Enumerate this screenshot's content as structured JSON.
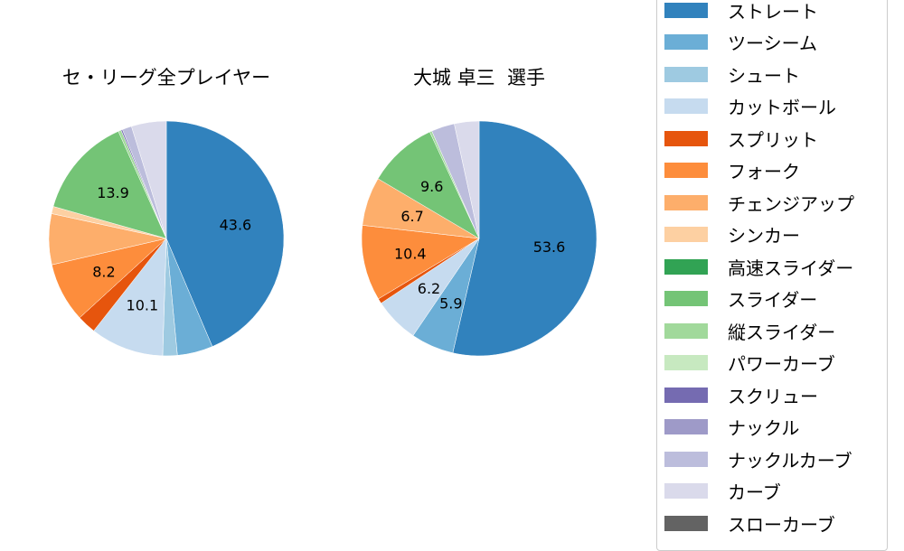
{
  "chart_data": [
    {
      "type": "pie",
      "title": "セ・リーグ全プレイヤー",
      "start_angle": 90,
      "direction": "clockwise",
      "categories": [
        "ストレート",
        "ツーシーム",
        "シュート",
        "カットボール",
        "スプリット",
        "フォーク",
        "チェンジアップ",
        "シンカー",
        "高速スライダー",
        "スライダー",
        "縦スライダー",
        "パワーカーブ",
        "スクリュー",
        "ナックル",
        "ナックルカーブ",
        "カーブ",
        "スローカーブ"
      ],
      "values": [
        43.6,
        4.9,
        2.0,
        10.1,
        2.6,
        8.2,
        7.0,
        1.0,
        0.0,
        13.9,
        0.4,
        0.0,
        0.2,
        0.0,
        1.3,
        4.8,
        0.0
      ],
      "data_labels": {
        "ストレート": "43.6",
        "カットボール": "10.1",
        "フォーク": "8.2",
        "スライダー": "13.9"
      }
    },
    {
      "type": "pie",
      "title": "大城 卓三  選手",
      "start_angle": 90,
      "direction": "clockwise",
      "categories": [
        "ストレート",
        "ツーシーム",
        "シュート",
        "カットボール",
        "スプリット",
        "フォーク",
        "チェンジアップ",
        "シンカー",
        "高速スライダー",
        "スライダー",
        "縦スライダー",
        "パワーカーブ",
        "スクリュー",
        "ナックル",
        "ナックルカーブ",
        "カーブ",
        "スローカーブ"
      ],
      "values": [
        53.6,
        5.9,
        0.0,
        6.2,
        0.7,
        10.4,
        6.7,
        0.0,
        0.0,
        9.6,
        0.3,
        0.0,
        0.0,
        0.0,
        3.2,
        3.4,
        0.0
      ],
      "data_labels": {
        "ストレート": "53.6",
        "ツーシーム": "5.9",
        "カットボール": "6.2",
        "フォーク": "10.4",
        "チェンジアップ": "6.7",
        "スライダー": "9.6"
      }
    }
  ],
  "titles": {
    "left": "セ・リーグ全プレイヤー",
    "right": "大城 卓三  選手"
  },
  "legend": {
    "position": "right",
    "items": [
      {
        "label": "ストレート",
        "color": "#3182bd"
      },
      {
        "label": "ツーシーム",
        "color": "#6baed6"
      },
      {
        "label": "シュート",
        "color": "#9ecae1"
      },
      {
        "label": "カットボール",
        "color": "#c6dbef"
      },
      {
        "label": "スプリット",
        "color": "#e6550d"
      },
      {
        "label": "フォーク",
        "color": "#fd8d3c"
      },
      {
        "label": "チェンジアップ",
        "color": "#fdae6b"
      },
      {
        "label": "シンカー",
        "color": "#fdd0a2"
      },
      {
        "label": "高速スライダー",
        "color": "#31a354"
      },
      {
        "label": "スライダー",
        "color": "#74c476"
      },
      {
        "label": "縦スライダー",
        "color": "#a1d99b"
      },
      {
        "label": "パワーカーブ",
        "color": "#c7e9c0"
      },
      {
        "label": "スクリュー",
        "color": "#756bb1"
      },
      {
        "label": "ナックル",
        "color": "#9e9ac8"
      },
      {
        "label": "ナックルカーブ",
        "color": "#bcbddc"
      },
      {
        "label": "カーブ",
        "color": "#dadaeb"
      },
      {
        "label": "スローカーブ",
        "color": "#636363"
      }
    ]
  }
}
